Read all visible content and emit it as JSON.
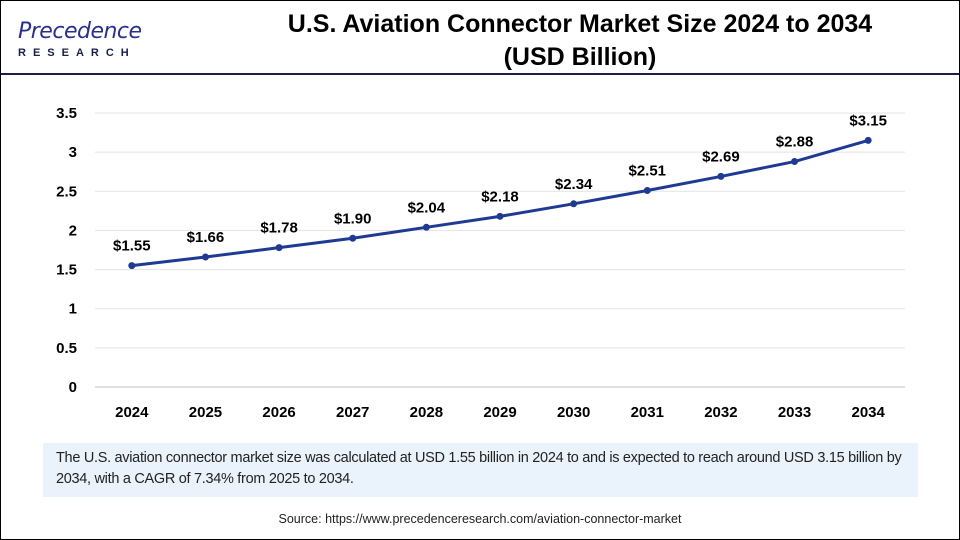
{
  "logo": {
    "top": "Precedence",
    "bottom": "RESEARCH"
  },
  "title": {
    "line1": "U.S. Aviation Connector Market Size 2024 to 2034",
    "line2": "(USD Billion)"
  },
  "chart_data": {
    "type": "line",
    "title": "U.S. Aviation Connector Market Size 2024 to 2034 (USD Billion)",
    "categories": [
      "2024",
      "2025",
      "2026",
      "2027",
      "2028",
      "2029",
      "2030",
      "2031",
      "2032",
      "2033",
      "2034"
    ],
    "values": [
      1.55,
      1.66,
      1.78,
      1.9,
      2.04,
      2.18,
      2.34,
      2.51,
      2.69,
      2.88,
      3.15
    ],
    "data_labels": [
      "$1.55",
      "$1.66",
      "$1.78",
      "$1.90",
      "$2.04",
      "$2.18",
      "$2.34",
      "$2.51",
      "$2.69",
      "$2.88",
      "$3.15"
    ],
    "yticks": [
      "0",
      "0.5",
      "1",
      "1.5",
      "2",
      "2.5",
      "3",
      "3.5"
    ],
    "ylim": [
      0,
      3.5
    ],
    "grid": true,
    "line_color": "#1f3a93",
    "xlabel": "",
    "ylabel": ""
  },
  "summary": "The U.S. aviation connector market size was calculated at USD 1.55 billion in 2024 to and is expected to reach around USD 3.15 billion by 2034, with a CAGR of 7.34% from 2025 to 2034.",
  "source": "Source: https://www.precedenceresearch.com/aviation-connector-market"
}
